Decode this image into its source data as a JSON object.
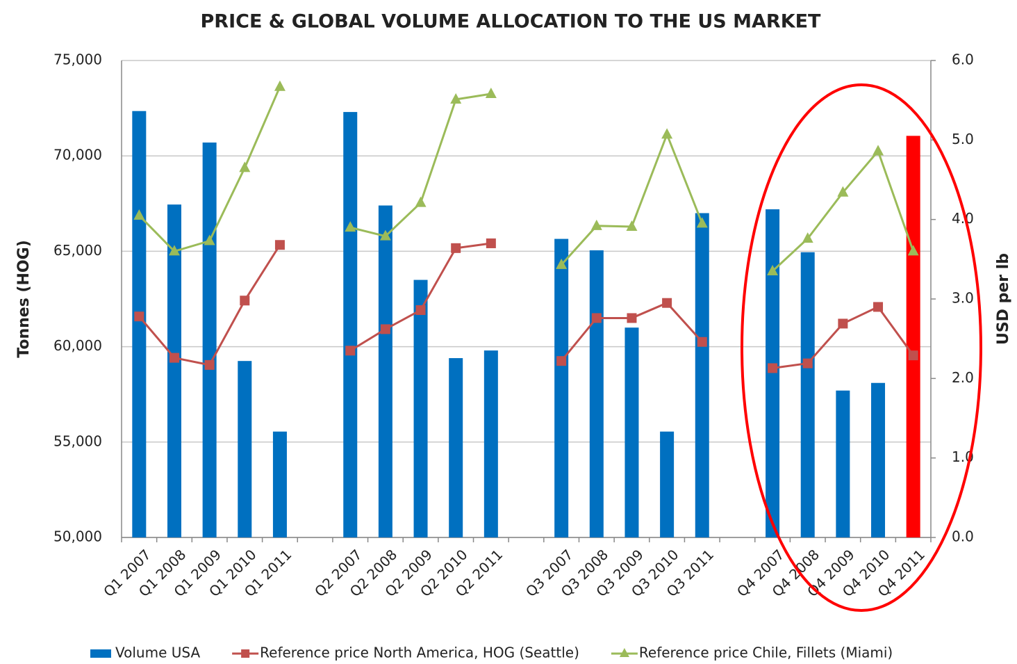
{
  "chart_data": {
    "type": "bar-line",
    "title": "PRICE & GLOBAL VOLUME ALLOCATION TO THE US MARKET",
    "y_label": "Tonnes (HOG)",
    "y2_label": "USD per lb",
    "categories": [
      "Q1 2007",
      "Q1 2008",
      "Q1 2009",
      "Q1 2010",
      "Q1 2011",
      null,
      "Q2 2007",
      "Q2 2008",
      "Q2 2009",
      "Q2 2010",
      "Q2 2011",
      null,
      "Q3 2007",
      "Q3 2008",
      "Q3 2009",
      "Q3 2010",
      "Q3 2011",
      null,
      "Q4 2007",
      "Q4 2008",
      "Q4 2009",
      "Q4 2010",
      "Q4 2011"
    ],
    "series": [
      {
        "name": "Volume USA",
        "type": "bar",
        "color": "#0070c0",
        "colors": [
          "#0070c0",
          "#0070c0",
          "#0070c0",
          "#0070c0",
          "#0070c0",
          null,
          "#0070c0",
          "#0070c0",
          "#0070c0",
          "#0070c0",
          "#0070c0",
          null,
          "#0070c0",
          "#0070c0",
          "#0070c0",
          "#0070c0",
          "#0070c0",
          null,
          "#0070c0",
          "#0070c0",
          "#0070c0",
          "#0070c0",
          "#ff0000"
        ],
        "values": [
          72350,
          67450,
          70700,
          59250,
          55550,
          null,
          72300,
          67400,
          63500,
          59400,
          59800,
          null,
          65650,
          65050,
          61000,
          55550,
          67000,
          null,
          67200,
          64950,
          57700,
          58100,
          71050
        ]
      },
      {
        "name": "Reference price North America, HOG (Seattle)",
        "type": "line",
        "marker": "square",
        "color": "#c0504d",
        "axis": "y2",
        "values": [
          2.78,
          2.26,
          2.17,
          2.98,
          3.68,
          null,
          2.35,
          2.62,
          2.86,
          3.64,
          3.7,
          null,
          2.22,
          2.76,
          2.76,
          2.95,
          2.46,
          null,
          2.13,
          2.19,
          2.69,
          2.9,
          2.29
        ]
      },
      {
        "name": "Reference price Chile, Fillets (Miami)",
        "type": "line",
        "marker": "triangle",
        "color": "#9bbb59",
        "axis": "y2",
        "values": [
          4.05,
          3.6,
          3.73,
          4.65,
          5.67,
          null,
          3.9,
          3.79,
          4.21,
          5.51,
          5.58,
          null,
          3.43,
          3.92,
          3.91,
          5.07,
          3.95,
          null,
          3.35,
          3.76,
          4.34,
          4.86,
          3.6
        ]
      }
    ],
    "ylim": [
      50000,
      75000
    ],
    "yticks": [
      {
        "value": 50000,
        "label": "50,000"
      },
      {
        "value": 55000,
        "label": "55,000"
      },
      {
        "value": 60000,
        "label": "60,000"
      },
      {
        "value": 65000,
        "label": "65,000"
      },
      {
        "value": 70000,
        "label": "70,000"
      },
      {
        "value": 75000,
        "label": "75,000"
      }
    ],
    "y2lim": [
      0,
      6
    ],
    "y2ticks": [
      {
        "value": 0,
        "label": "0.0"
      },
      {
        "value": 1,
        "label": "1.0"
      },
      {
        "value": 2,
        "label": "2.0"
      },
      {
        "value": 3,
        "label": "3.0"
      },
      {
        "value": 4,
        "label": "4.0"
      },
      {
        "value": 5,
        "label": "5.0"
      },
      {
        "value": 6,
        "label": "6.0"
      }
    ],
    "grid": true,
    "legend": "bottom"
  }
}
